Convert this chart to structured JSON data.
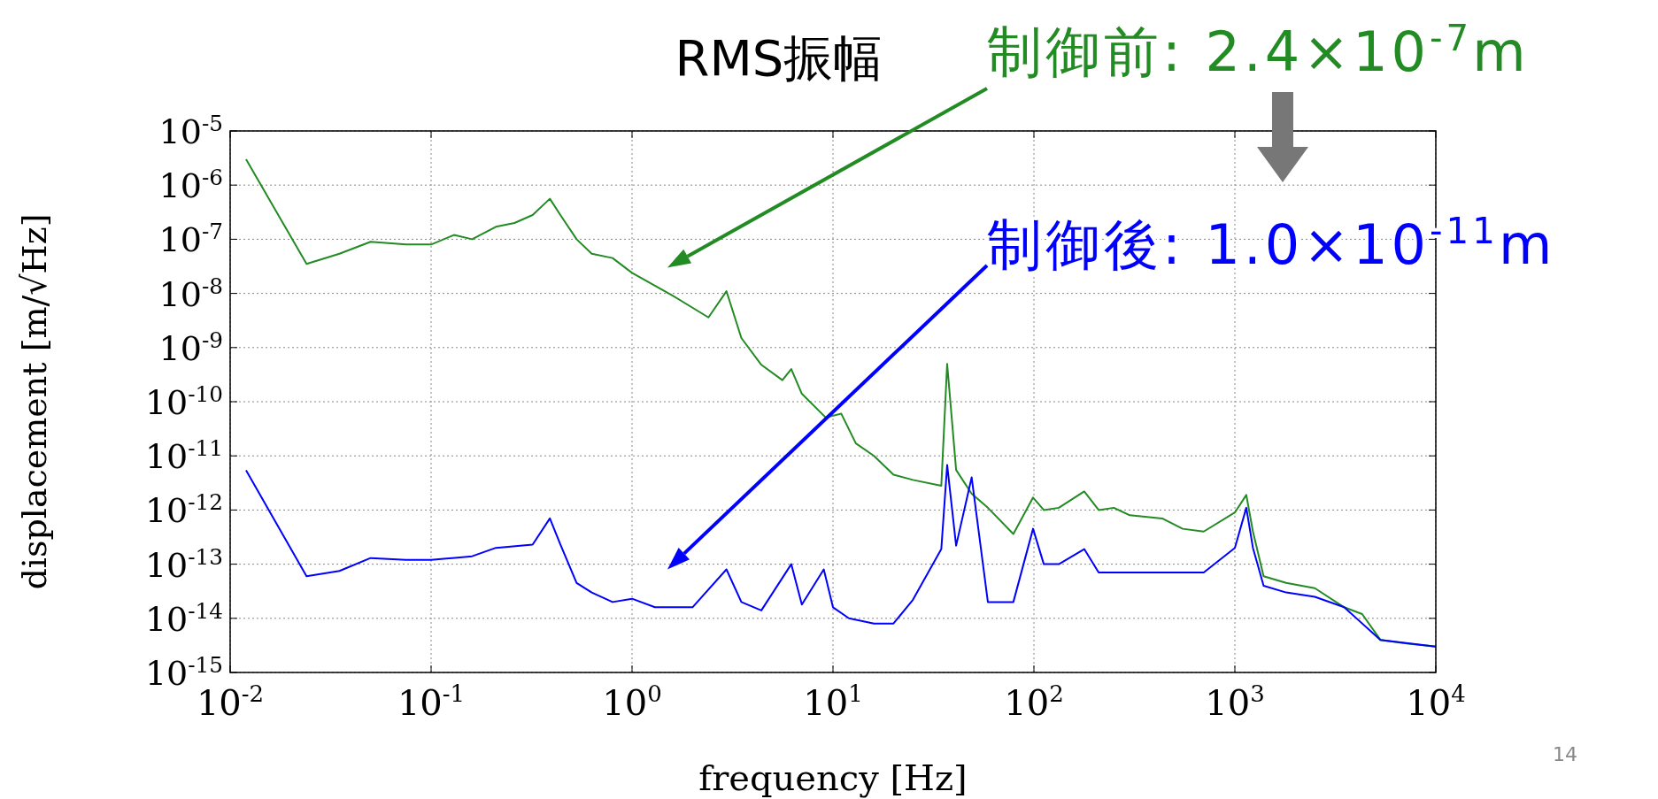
{
  "chart_data": {
    "type": "line",
    "xlabel": "frequency [Hz]",
    "ylabel": "displacement [m/√Hz]",
    "log": "xy",
    "grid": true,
    "xlim": [
      0.01,
      10000
    ],
    "ylim": [
      1e-15,
      1e-05
    ],
    "xticks": [
      {
        "value": 0.01,
        "label": "10$^{-2}$"
      },
      {
        "value": 0.1,
        "label": "10$^{-1}$"
      },
      {
        "value": 1,
        "label": "10$^{0}$"
      },
      {
        "value": 10,
        "label": "10$^{1}$"
      },
      {
        "value": 100,
        "label": "10$^{2}$"
      },
      {
        "value": 1000,
        "label": "10$^{3}$"
      },
      {
        "value": 10000,
        "label": "10$^{4}$"
      }
    ],
    "yticks": [
      {
        "value": 1e-15,
        "label": "10$^{-15}$"
      },
      {
        "value": 1e-14,
        "label": "10$^{-14}$"
      },
      {
        "value": 1e-13,
        "label": "10$^{-13}$"
      },
      {
        "value": 1e-12,
        "label": "10$^{-12}$"
      },
      {
        "value": 1e-11,
        "label": "10$^{-11}$"
      },
      {
        "value": 1e-10,
        "label": "10$^{-10}$"
      },
      {
        "value": 1e-09,
        "label": "10$^{-9}$"
      },
      {
        "value": 1e-08,
        "label": "10$^{-8}$"
      },
      {
        "value": 1e-07,
        "label": "10$^{-7}$"
      },
      {
        "value": 1e-06,
        "label": "10$^{-6}$"
      },
      {
        "value": 1e-05,
        "label": "10$^{-5}$"
      }
    ],
    "annotations": [
      "RMS振幅",
      "制御前: 2.4×10$^{-7}$m",
      "制御後: 1.0×10$^{-11}$m",
      "14"
    ],
    "series": [
      {
        "color": "#238b23",
        "x": [
          0.012,
          0.024,
          0.035,
          0.05,
          0.075,
          0.1,
          0.13,
          0.16,
          0.21,
          0.26,
          0.32,
          0.39,
          0.44,
          0.53,
          0.63,
          0.8,
          1.0,
          1.6,
          2.4,
          2.95,
          3.5,
          4.4,
          5.6,
          6.2,
          7.0,
          9.2,
          11,
          13,
          16,
          20,
          25,
          34.6,
          37,
          41,
          49,
          59,
          79,
          99,
          112,
          133,
          178,
          210,
          250,
          300,
          435,
          550,
          700,
          1000,
          1140,
          1230,
          1390,
          1800,
          2500,
          3500,
          4300,
          5300,
          7300,
          10000
        ],
        "values": [
          3e-06,
          3.5e-08,
          5.4e-08,
          9e-08,
          8e-08,
          8e-08,
          1.2e-07,
          1e-07,
          1.7e-07,
          2e-07,
          2.8e-07,
          5.6e-07,
          2.8e-07,
          1e-07,
          5.4e-08,
          4.5e-08,
          2.4e-08,
          9e-09,
          3.6e-09,
          1.1e-08,
          1.5e-09,
          4.8e-10,
          2.5e-10,
          4e-10,
          1.4e-10,
          5.1e-11,
          6e-11,
          1.7e-11,
          1e-11,
          4.5e-12,
          3.6e-12,
          2.8e-12,
          5e-10,
          5.5e-12,
          2e-12,
          1.1e-12,
          3.6e-13,
          1.7e-12,
          1e-12,
          1.1e-12,
          2.2e-12,
          1e-12,
          1.1e-12,
          8e-13,
          7e-13,
          4.5e-13,
          4e-13,
          9e-13,
          1.9e-12,
          4e-13,
          6e-14,
          4.5e-14,
          3.6e-14,
          1.6e-14,
          1.2e-14,
          4e-15,
          3.4e-15,
          3e-15
        ]
      },
      {
        "color": "#0000ff",
        "x": [
          0.012,
          0.024,
          0.035,
          0.05,
          0.075,
          0.1,
          0.16,
          0.21,
          0.32,
          0.39,
          0.44,
          0.53,
          0.63,
          0.8,
          1.0,
          1.3,
          2.0,
          2.95,
          3.5,
          4.4,
          6.2,
          7.0,
          9.0,
          10,
          12,
          16,
          20,
          25,
          34.6,
          37,
          41,
          49,
          59,
          79,
          99,
          112,
          133,
          178,
          210,
          300,
          435,
          700,
          1000,
          1140,
          1230,
          1390,
          1800,
          2500,
          3500,
          5300,
          10000
        ],
        "values": [
          5.4e-12,
          6e-14,
          7.5e-14,
          1.3e-13,
          1.2e-13,
          1.2e-13,
          1.4e-13,
          2e-13,
          2.3e-13,
          7e-13,
          2.3e-13,
          4.5e-14,
          3e-14,
          2e-14,
          2.3e-14,
          1.6e-14,
          1.6e-14,
          8e-14,
          2e-14,
          1.4e-14,
          1e-13,
          1.8e-14,
          8e-14,
          1.6e-14,
          1e-14,
          8e-15,
          8e-15,
          2.2e-14,
          1.9e-13,
          6.8e-12,
          2.2e-13,
          4e-12,
          2e-14,
          2e-14,
          4.5e-13,
          1e-13,
          1e-13,
          1.9e-13,
          7e-14,
          7e-14,
          7e-14,
          7e-14,
          2e-13,
          1.1e-12,
          2e-13,
          4e-14,
          3e-14,
          2.5e-14,
          1.6e-14,
          4e-15,
          3e-15
        ]
      }
    ]
  }
}
